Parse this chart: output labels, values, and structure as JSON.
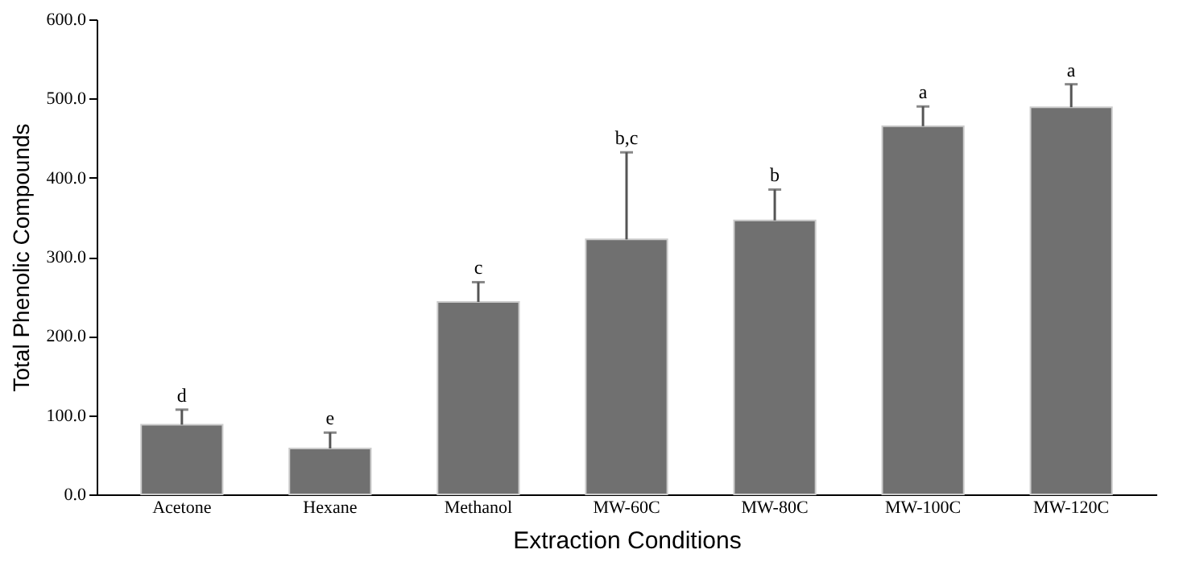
{
  "chart_data": {
    "type": "bar",
    "xlabel": "Extraction Conditions",
    "ylabel": "Total Phenolic Compounds",
    "categories": [
      "Acetone",
      "Hexane",
      "Methanol",
      "MW-60C",
      "MW-80C",
      "MW-100C",
      "MW-120C"
    ],
    "values": [
      88,
      58,
      243,
      322,
      346,
      465,
      489
    ],
    "errors": [
      [
        88,
        107
      ],
      [
        58,
        78
      ],
      [
        243,
        268
      ],
      [
        322,
        432
      ],
      [
        346,
        385
      ],
      [
        465,
        490
      ],
      [
        489,
        518
      ]
    ],
    "color": "#707070",
    "ylim": [
      0,
      600
    ],
    "yticks": [
      {
        "value": 0,
        "label": "0.0"
      },
      {
        "value": 100,
        "label": "100.0"
      },
      {
        "value": 200,
        "label": "200.0"
      },
      {
        "value": 300,
        "label": "300.0"
      },
      {
        "value": 400,
        "label": "400.0"
      },
      {
        "value": 500,
        "label": "500.0"
      },
      {
        "value": 600,
        "label": "600.0"
      }
    ],
    "annotations": [
      {
        "text": "d",
        "x": "Acetone",
        "y": 107
      },
      {
        "text": "e",
        "x": "Hexane",
        "y": 78
      },
      {
        "text": "c",
        "x": "Methanol",
        "y": 268
      },
      {
        "text": "b,c",
        "x": "MW-60C",
        "y": 432
      },
      {
        "text": "b",
        "x": "MW-80C",
        "y": 385
      },
      {
        "text": "a",
        "x": "MW-100C",
        "y": 490
      },
      {
        "text": "a",
        "x": "MW-120C",
        "y": 518
      }
    ]
  }
}
